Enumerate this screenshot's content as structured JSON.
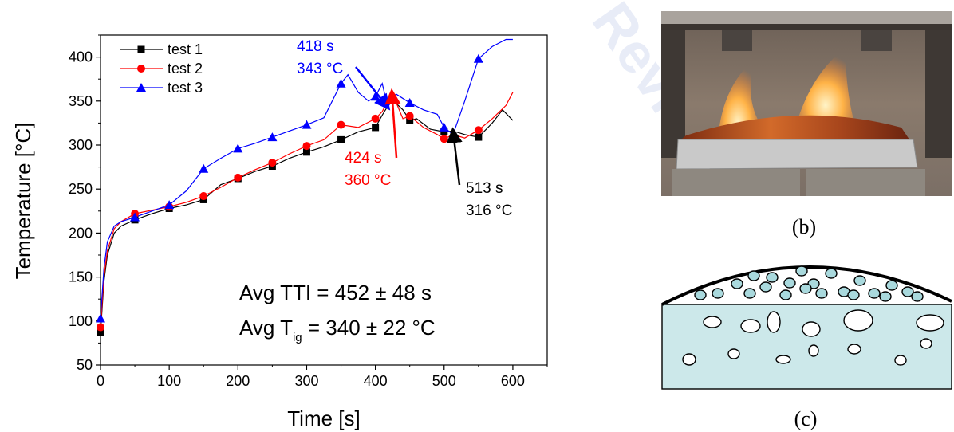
{
  "watermark": "Review",
  "chart_data": {
    "type": "line",
    "xlabel": "Time [s]",
    "ylabel": "Temperature [°C]",
    "xlim": [
      0,
      650
    ],
    "ylim": [
      50,
      425
    ],
    "xticks": [
      0,
      100,
      200,
      300,
      400,
      500,
      600
    ],
    "yticks": [
      50,
      100,
      150,
      200,
      250,
      300,
      350,
      400
    ],
    "grid": false,
    "legend_position": "top-left",
    "series": [
      {
        "name": "test 1",
        "color": "#000000",
        "marker": "square",
        "x": [
          0,
          5,
          10,
          20,
          30,
          50,
          75,
          100,
          125,
          150,
          175,
          200,
          225,
          250,
          275,
          300,
          325,
          350,
          375,
          400,
          410,
          424,
          440,
          450,
          460,
          480,
          500,
          513,
          530,
          550,
          570,
          585,
          600
        ],
        "y": [
          87,
          145,
          175,
          200,
          208,
          215,
          222,
          228,
          232,
          238,
          255,
          262,
          270,
          276,
          285,
          292,
          298,
          306,
          315,
          320,
          334,
          352,
          340,
          328,
          330,
          318,
          315,
          316,
          312,
          309,
          325,
          340,
          328
        ]
      },
      {
        "name": "test 2",
        "color": "#ff0000",
        "marker": "circle",
        "x": [
          0,
          5,
          10,
          20,
          30,
          50,
          75,
          100,
          125,
          150,
          175,
          200,
          225,
          250,
          275,
          300,
          325,
          350,
          375,
          400,
          410,
          424,
          440,
          450,
          470,
          490,
          500,
          513,
          530,
          550,
          570,
          590,
          600
        ],
        "y": [
          93,
          150,
          180,
          205,
          213,
          222,
          226,
          230,
          235,
          242,
          252,
          263,
          272,
          280,
          290,
          299,
          306,
          323,
          320,
          330,
          338,
          360,
          330,
          333,
          320,
          312,
          307,
          312,
          308,
          317,
          330,
          345,
          360
        ]
      },
      {
        "name": "test 3",
        "color": "#0000ff",
        "marker": "triangle",
        "x": [
          0,
          5,
          10,
          20,
          30,
          50,
          75,
          100,
          125,
          150,
          175,
          200,
          225,
          250,
          275,
          300,
          325,
          350,
          360,
          375,
          390,
          400,
          410,
          418,
          430,
          450,
          470,
          490,
          500,
          513,
          530,
          550,
          570,
          590,
          600
        ],
        "y": [
          103,
          160,
          190,
          208,
          213,
          218,
          225,
          232,
          248,
          273,
          285,
          296,
          302,
          309,
          316,
          323,
          331,
          370,
          380,
          360,
          350,
          355,
          370,
          343,
          358,
          348,
          340,
          335,
          320,
          312,
          350,
          398,
          412,
          420,
          420
        ]
      }
    ],
    "markers_every": 50,
    "annotations": [
      {
        "series": "test 3",
        "line1": "418 s",
        "line2": "343 °C",
        "color": "#0000ff",
        "x": 418,
        "y": 343
      },
      {
        "series": "test 2",
        "line1": "424 s",
        "line2": "360 °C",
        "color": "#ff0000",
        "x": 424,
        "y": 360
      },
      {
        "series": "test 1",
        "line1": "513 s",
        "line2": "316 °C",
        "color": "#000000",
        "x": 513,
        "y": 316
      }
    ],
    "summary": {
      "line1": "Avg TTI = 452 ± 48 s",
      "line2_prefix": "Avg T",
      "line2_sub": "ig",
      "line2_suffix": " = 340 ± 22 °C"
    }
  },
  "panels": {
    "b_label": "(b)",
    "c_label": "(c)"
  }
}
